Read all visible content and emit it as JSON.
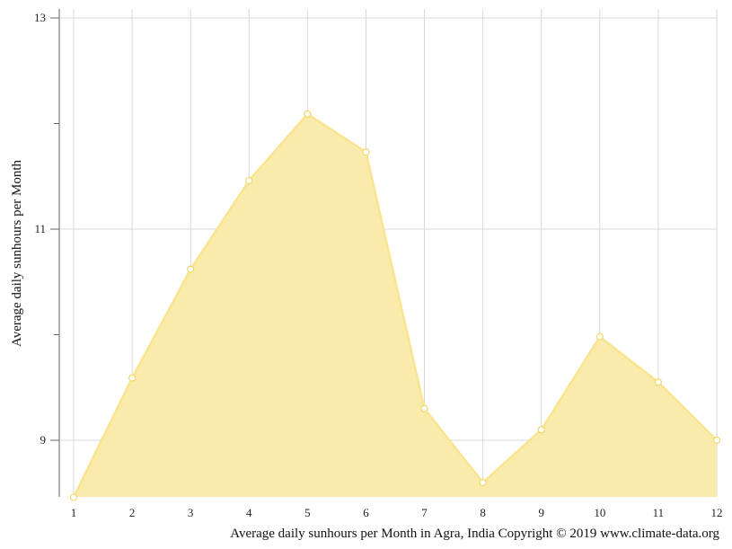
{
  "chart_data": {
    "type": "area",
    "x": [
      1,
      2,
      3,
      4,
      5,
      6,
      7,
      8,
      9,
      10,
      11,
      12
    ],
    "series": [
      {
        "values": [
          8.46,
          9.59,
          10.62,
          11.46,
          12.09,
          11.73,
          9.3,
          8.6,
          9.1,
          9.98,
          9.55,
          9.0
        ]
      }
    ],
    "xlabel": "Average daily sunhours per Month in Agra, India Copyright © 2019 www.climate-data.org",
    "ylabel": "Average daily sunhours per Month",
    "x_ticks": [
      "1",
      "2",
      "3",
      "4",
      "5",
      "6",
      "7",
      "8",
      "9",
      "10",
      "11",
      "12"
    ],
    "y_ticks": [
      "9",
      "11",
      "13"
    ],
    "ylim": [
      8.46,
      13.08
    ],
    "grid": true,
    "colors": {
      "fill": "#f9eaa8",
      "line": "#fae48f",
      "marker_fill": "#ffffff",
      "grid": "#d9d9d9",
      "axis": "#666666"
    }
  }
}
